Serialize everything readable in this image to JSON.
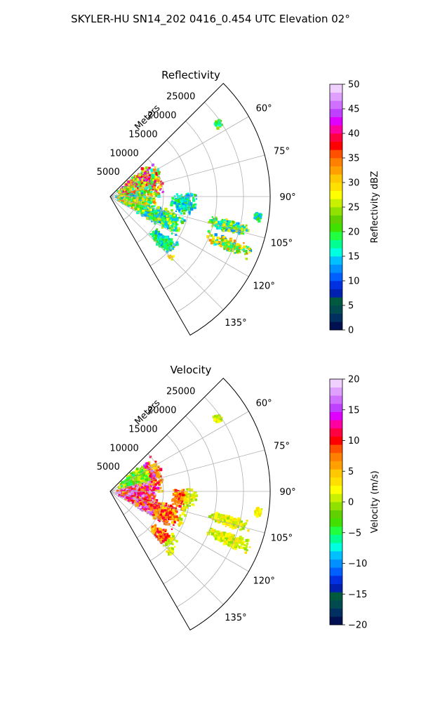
{
  "suptitle": "SKYLER-HU  SN14_202  0416_0.454 UTC Elevation 02°",
  "chart_data": [
    {
      "type": "heatmap",
      "projection": "polar-sector",
      "title": "Reflectivity",
      "theta_range_deg": [
        45,
        150
      ],
      "r_range_m": [
        0,
        30000
      ],
      "r_axis_label": "Meters",
      "r_ticks": [
        5000,
        10000,
        15000,
        20000,
        25000
      ],
      "r_tick_labels": [
        "5000",
        "10000",
        "15000",
        "20000",
        "25000"
      ],
      "theta_ticks": [
        60,
        75,
        90,
        105,
        120,
        135
      ],
      "theta_tick_labels": [
        "60°",
        "75°",
        "90°",
        "105°",
        "120°",
        "135°"
      ],
      "grid": true,
      "colorbar": {
        "label": "Reflectivity dBZ",
        "range": [
          0,
          50
        ],
        "ticks": [
          0,
          5,
          10,
          15,
          20,
          25,
          30,
          35,
          40,
          45,
          50
        ],
        "tick_labels": [
          "0",
          "5",
          "10",
          "15",
          "20",
          "25",
          "30",
          "35",
          "40",
          "45",
          "50"
        ],
        "colors": [
          "#001050",
          "#003060",
          "#004a50",
          "#005a40",
          "#0020b0",
          "#0030e0",
          "#0060ff",
          "#0090ff",
          "#00c0ff",
          "#00ffe0",
          "#00ff90",
          "#20ff40",
          "#40e000",
          "#60d000",
          "#90e000",
          "#c8f000",
          "#ffff00",
          "#ffe000",
          "#ffc800",
          "#ffa000",
          "#ff8000",
          "#ff5000",
          "#ff0000",
          "#ff0040",
          "#ff00a0",
          "#e000ff",
          "#c040ff",
          "#d070ff",
          "#e0a0ff",
          "#f0d0ff"
        ]
      }
    },
    {
      "type": "heatmap",
      "projection": "polar-sector",
      "title": "Velocity",
      "theta_range_deg": [
        45,
        150
      ],
      "r_range_m": [
        0,
        30000
      ],
      "r_axis_label": "Meters",
      "r_ticks": [
        5000,
        10000,
        15000,
        20000,
        25000
      ],
      "r_tick_labels": [
        "5000",
        "10000",
        "15000",
        "20000",
        "25000"
      ],
      "theta_ticks": [
        60,
        75,
        90,
        105,
        120,
        135
      ],
      "theta_tick_labels": [
        "60°",
        "75°",
        "90°",
        "105°",
        "120°",
        "135°"
      ],
      "grid": true,
      "colorbar": {
        "label": "Velocity (m/s)",
        "range": [
          -20,
          20
        ],
        "ticks": [
          -20,
          -15,
          -10,
          -5,
          0,
          5,
          10,
          15,
          20
        ],
        "tick_labels": [
          "−20",
          "−15",
          "−10",
          "−5",
          "0",
          "5",
          "10",
          "15",
          "20"
        ],
        "colors": [
          "#001050",
          "#003060",
          "#004a50",
          "#005a40",
          "#0020b0",
          "#0030e0",
          "#0060ff",
          "#0090ff",
          "#00c0ff",
          "#00ffe0",
          "#00ff90",
          "#20ff40",
          "#40e000",
          "#60d000",
          "#90e000",
          "#c8f000",
          "#ffff00",
          "#ffe000",
          "#ffc800",
          "#ffa000",
          "#ff8000",
          "#ff5000",
          "#ff0000",
          "#ff0040",
          "#ff00a0",
          "#e000ff",
          "#c040ff",
          "#d070ff",
          "#e0a0ff",
          "#f0d0ff"
        ]
      }
    }
  ]
}
